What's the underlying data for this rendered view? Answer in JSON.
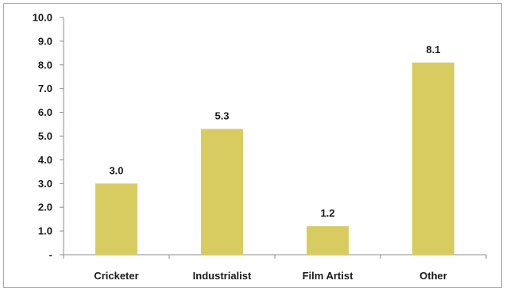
{
  "chart_data": {
    "type": "bar",
    "categories": [
      "Cricketer",
      "Industrialist",
      "Film Artist",
      "Other"
    ],
    "values": [
      3.0,
      5.3,
      1.2,
      8.1
    ],
    "data_labels": [
      "3.0",
      "5.3",
      "1.2",
      "8.1"
    ],
    "y_ticks": [
      "-",
      "1.0",
      "2.0",
      "3.0",
      "4.0",
      "5.0",
      "6.0",
      "7.0",
      "8.0",
      "9.0",
      "10.0"
    ],
    "ylim": [
      0,
      10
    ],
    "title": "",
    "xlabel": "",
    "ylabel": "",
    "grid": false,
    "legend": "none",
    "bar_color": "#d8cc60",
    "axis_color": "#8c8c8c"
  }
}
